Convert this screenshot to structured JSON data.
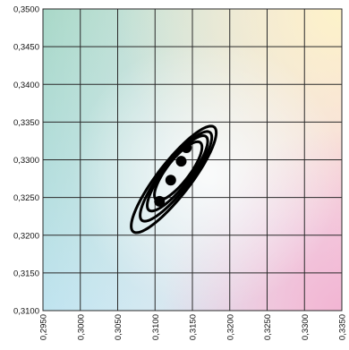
{
  "chart_data": {
    "type": "scatter",
    "title": "",
    "xlabel": "",
    "ylabel": "",
    "xlim": [
      0.295,
      0.335
    ],
    "ylim": [
      0.31,
      0.35
    ],
    "grid": true,
    "background": "cie-chromaticity-gradient",
    "x_ticks": [
      "0,2950",
      "0,3000",
      "0,3050",
      "0,3100",
      "0,3150",
      "0,3200",
      "0,3250",
      "0,3300",
      "0,3350"
    ],
    "y_ticks": [
      "0,3100",
      "0,3150",
      "0,3200",
      "0,3250",
      "0,3300",
      "0,3350",
      "0,3400",
      "0,3450",
      "0,3500"
    ],
    "points": [
      {
        "x": 0.3106,
        "y": 0.3245
      },
      {
        "x": 0.3121,
        "y": 0.3273
      },
      {
        "x": 0.3135,
        "y": 0.3298
      },
      {
        "x": 0.3142,
        "y": 0.3316
      }
    ],
    "ellipses": [
      {
        "cx": 0.3125,
        "cy": 0.3274,
        "a": 0.0088,
        "b": 0.0022,
        "angle_deg": 52
      },
      {
        "cx": 0.3128,
        "cy": 0.3278,
        "a": 0.0074,
        "b": 0.0019,
        "angle_deg": 52
      },
      {
        "cx": 0.313,
        "cy": 0.3282,
        "a": 0.0062,
        "b": 0.0017,
        "angle_deg": 52
      },
      {
        "cx": 0.3131,
        "cy": 0.3285,
        "a": 0.0048,
        "b": 0.0015,
        "angle_deg": 52
      }
    ],
    "colors": {
      "marks": "#000000",
      "grid": "#2a2a2a",
      "bg_top_left": "#a9d8c8",
      "bg_top_right": "#fdf0c8",
      "bg_bottom_left": "#bfe3ef",
      "bg_bottom_right": "#f3bcd8"
    }
  }
}
